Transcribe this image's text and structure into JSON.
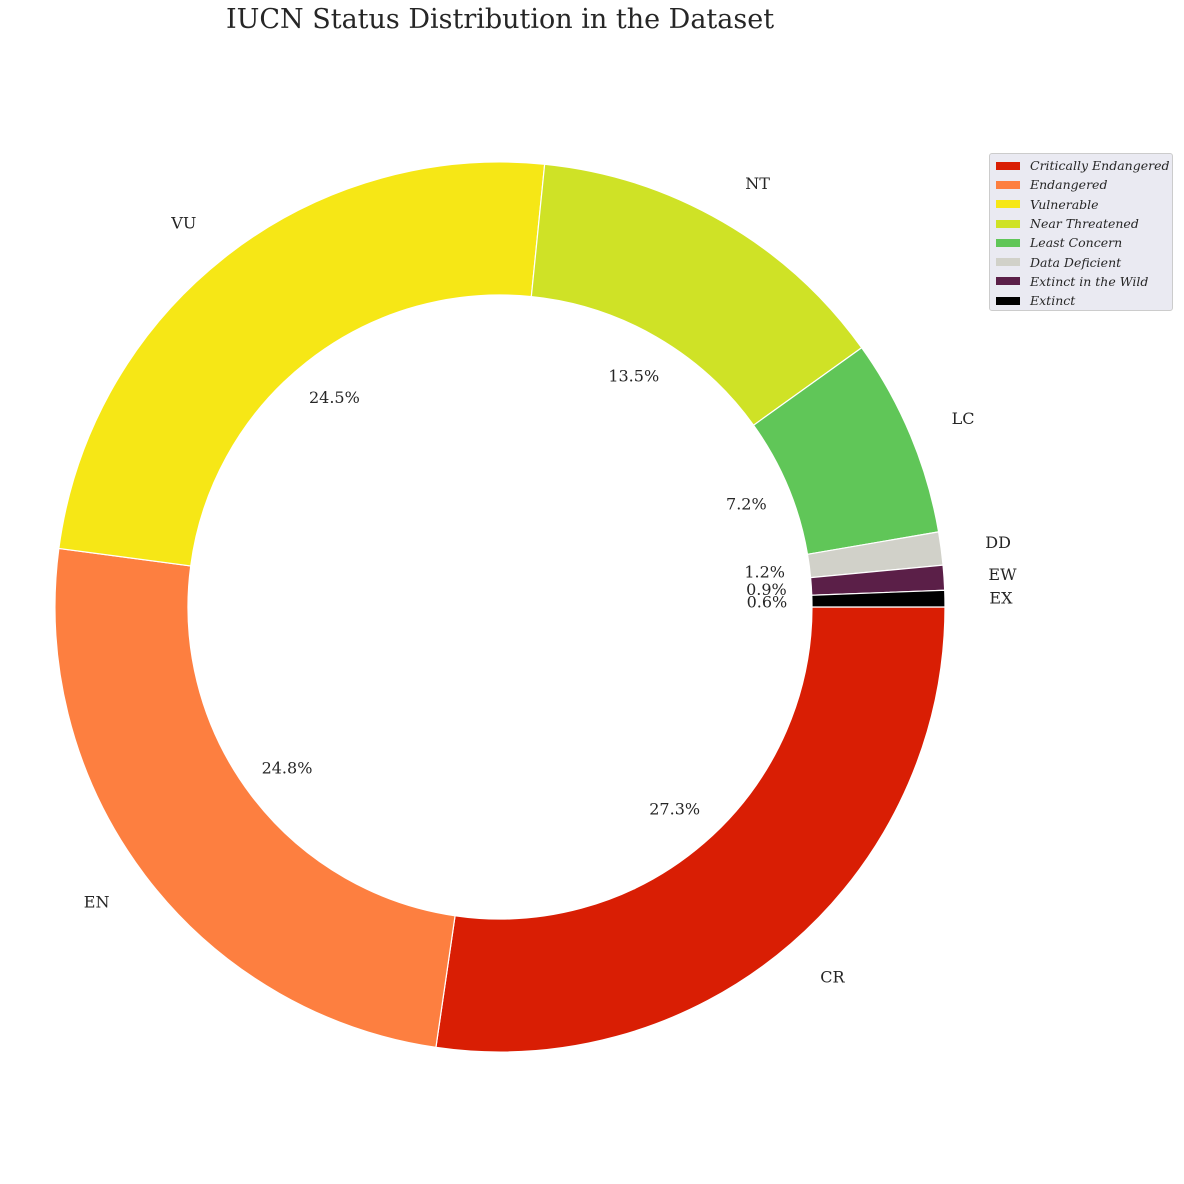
{
  "chart_data": {
    "type": "pie",
    "donut": true,
    "title": "IUCN Status Distribution in the Dataset",
    "slices": [
      {
        "code": "CR",
        "name": "Critically Endangered",
        "value": 27.3,
        "pct_label": "27.3%",
        "color": "#d91e04"
      },
      {
        "code": "EN",
        "name": "Endangered",
        "value": 24.8,
        "pct_label": "24.8%",
        "color": "#fd7f40"
      },
      {
        "code": "VU",
        "name": "Vulnerable",
        "value": 24.5,
        "pct_label": "24.5%",
        "color": "#f6e716"
      },
      {
        "code": "NT",
        "name": "Near Threatened",
        "value": 13.5,
        "pct_label": "13.5%",
        "color": "#cfe226"
      },
      {
        "code": "LC",
        "name": "Least Concern",
        "value": 7.2,
        "pct_label": "7.2%",
        "color": "#60c658"
      },
      {
        "code": "DD",
        "name": "Data Deficient",
        "value": 1.2,
        "pct_label": "1.2%",
        "color": "#d1d1c9"
      },
      {
        "code": "EW",
        "name": "Extinct in the Wild",
        "value": 0.9,
        "pct_label": "0.9%",
        "color": "#5b1f48"
      },
      {
        "code": "EX",
        "name": "Extinct",
        "value": 0.6,
        "pct_label": "0.6%",
        "color": "#000000"
      }
    ],
    "legend": {
      "position": "top-right"
    }
  }
}
